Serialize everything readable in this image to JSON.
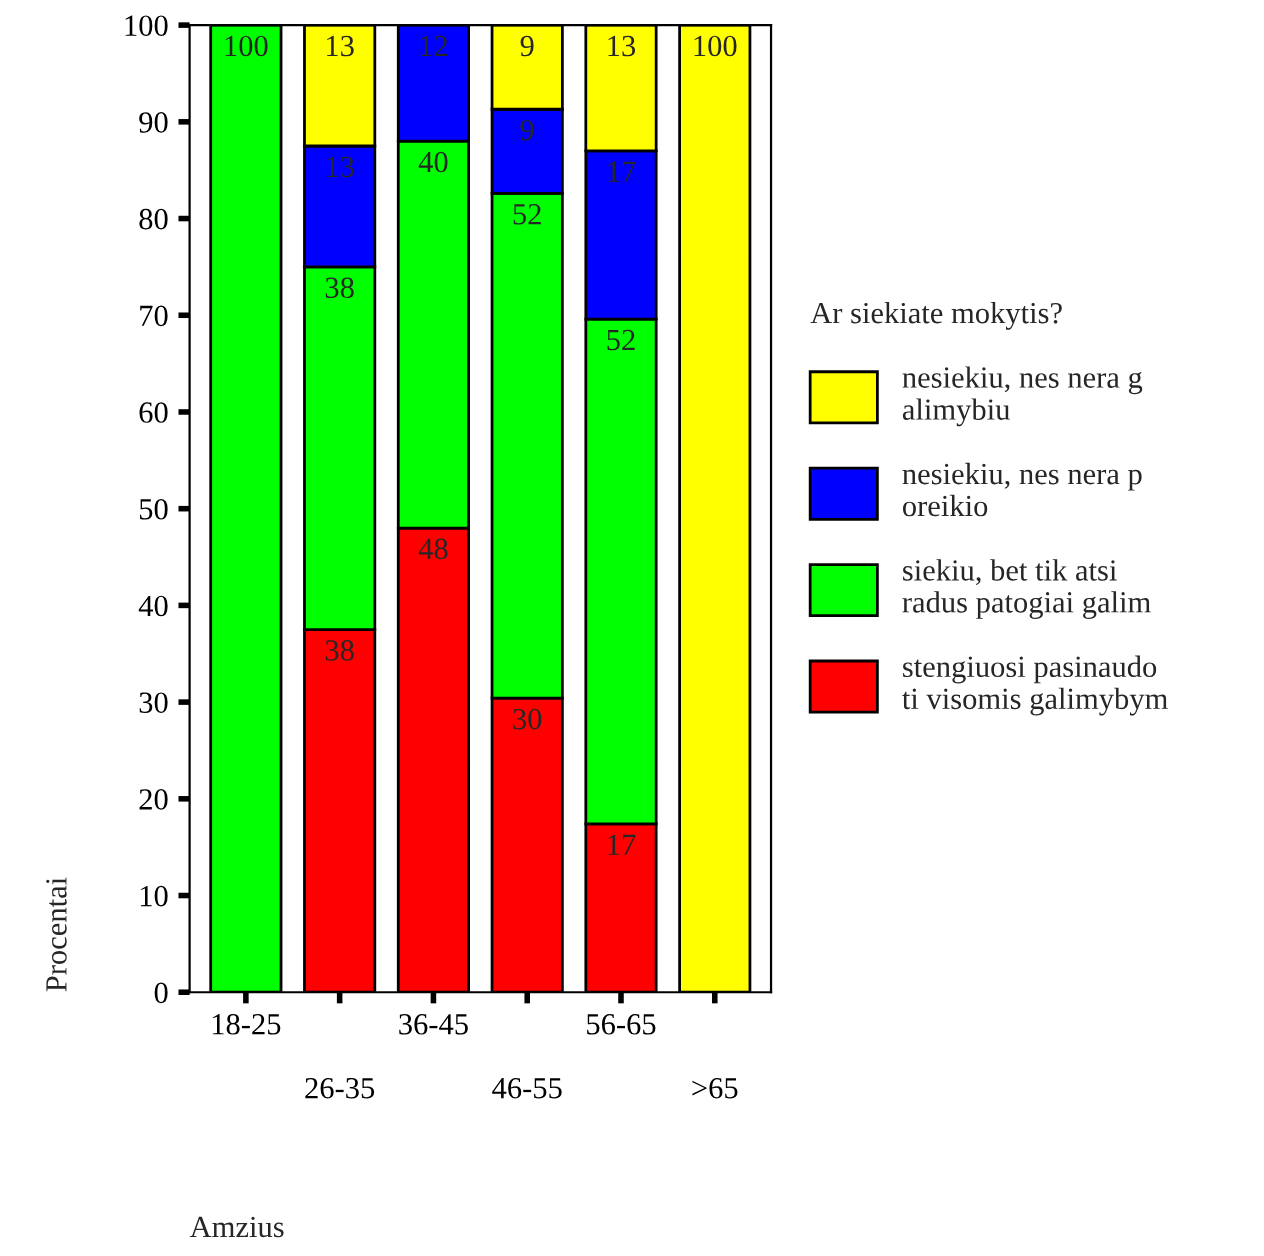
{
  "chart_data": {
    "type": "bar",
    "stacked": true,
    "xlabel": "Amzius",
    "ylabel": "Procentai",
    "legend_title": "Ar siekiate mokytis?",
    "legend": "right",
    "grid": false,
    "categories": [
      "18-25",
      "26-35",
      "36-45",
      "46-55",
      "56-65",
      ">65"
    ],
    "ylim": [
      0,
      100
    ],
    "yticks": [
      0,
      10,
      20,
      30,
      40,
      50,
      60,
      70,
      80,
      90,
      100
    ],
    "series": [
      {
        "name": "stengiuosi pasinaudo\nti visomis galimybym",
        "color": "#ff0000",
        "values": [
          null,
          37.5,
          48,
          30.4,
          17.4,
          null
        ],
        "value_labels": [
          null,
          "38",
          "48",
          "30",
          "17",
          null
        ]
      },
      {
        "name": "siekiu, bet tik atsi\nradus patogiai galim",
        "color": "#00ff00",
        "values": [
          100,
          37.5,
          40,
          52.2,
          52.2,
          null
        ],
        "value_labels": [
          "100",
          "38",
          "40",
          "52",
          "52",
          null
        ]
      },
      {
        "name": "nesiekiu, nes nera p\noreikio",
        "color": "#0000ff",
        "values": [
          null,
          12.5,
          12,
          8.7,
          17.4,
          null
        ],
        "value_labels": [
          null,
          "13",
          "12",
          "9",
          "17",
          null
        ]
      },
      {
        "name": "nesiekiu, nes nera g\nalimybiu",
        "color": "#ffff00",
        "values": [
          null,
          12.5,
          null,
          8.7,
          13,
          100
        ],
        "value_labels": [
          null,
          "13",
          null,
          "9",
          "13",
          "100"
        ]
      }
    ]
  }
}
